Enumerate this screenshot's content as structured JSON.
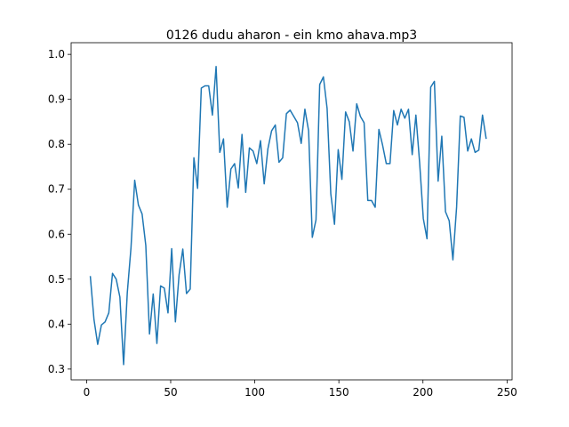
{
  "chart_data": {
    "type": "line",
    "title": "0126 dudu aharon - ein kmo ahava.mp3",
    "x": [
      2.2,
      4.4,
      6.6,
      8.8,
      11,
      13.2,
      15.4,
      17.6,
      19.8,
      22,
      24.2,
      26.4,
      28.6,
      30.8,
      33,
      35.2,
      37.4,
      39.6,
      41.8,
      44,
      46.2,
      48.4,
      50.6,
      52.8,
      55,
      57.2,
      59.4,
      61.6,
      63.8,
      66,
      68.2,
      70.4,
      72.6,
      74.8,
      77,
      79.2,
      81.4,
      83.6,
      85.8,
      88,
      90.2,
      92.4,
      94.6,
      96.8,
      99,
      101.2,
      103.4,
      105.6,
      107.8,
      110,
      112.2,
      114.4,
      116.6,
      118.8,
      121,
      123.2,
      125.4,
      127.6,
      129.8,
      132,
      134.2,
      136.4,
      138.6,
      140.8,
      143,
      145.2,
      147.4,
      149.6,
      151.8,
      154,
      156.2,
      158.4,
      160.6,
      162.8,
      165,
      167.2,
      169.4,
      171.6,
      173.8,
      176,
      178.2,
      180.4,
      182.6,
      184.8,
      187,
      189.2,
      191.4,
      193.6,
      195.8,
      198,
      200.2,
      202.4,
      204.6,
      206.8,
      209,
      211.2,
      213.4,
      215.6,
      217.8,
      220,
      222.2,
      224.4,
      226.6,
      228.8,
      231,
      233.2,
      235.4,
      237.6
    ],
    "series": [
      {
        "color": "#1f77b4",
        "values": [
          0.507,
          0.41,
          0.355,
          0.398,
          0.405,
          0.425,
          0.513,
          0.5,
          0.46,
          0.31,
          0.47,
          0.57,
          0.72,
          0.665,
          0.645,
          0.575,
          0.378,
          0.467,
          0.357,
          0.485,
          0.48,
          0.425,
          0.568,
          0.405,
          0.51,
          0.567,
          0.468,
          0.478,
          0.77,
          0.702,
          0.925,
          0.93,
          0.93,
          0.865,
          0.973,
          0.782,
          0.812,
          0.66,
          0.745,
          0.757,
          0.703,
          0.822,
          0.693,
          0.792,
          0.785,
          0.757,
          0.808,
          0.712,
          0.79,
          0.83,
          0.843,
          0.76,
          0.77,
          0.868,
          0.876,
          0.862,
          0.848,
          0.802,
          0.878,
          0.83,
          0.593,
          0.632,
          0.933,
          0.95,
          0.88,
          0.69,
          0.622,
          0.788,
          0.722,
          0.872,
          0.85,
          0.785,
          0.89,
          0.862,
          0.848,
          0.675,
          0.675,
          0.66,
          0.833,
          0.798,
          0.757,
          0.757,
          0.875,
          0.843,
          0.878,
          0.858,
          0.878,
          0.777,
          0.865,
          0.76,
          0.635,
          0.59,
          0.927,
          0.94,
          0.718,
          0.818,
          0.65,
          0.63,
          0.543,
          0.66,
          0.863,
          0.86,
          0.785,
          0.812,
          0.782,
          0.787,
          0.865,
          0.812
        ]
      }
    ],
    "xlim": [
      -9.2,
      253
    ],
    "ylim": [
      0.276,
      1.026
    ],
    "xticks": [
      0,
      50,
      100,
      150,
      200,
      250
    ],
    "yticks": [
      0.3,
      0.4,
      0.5,
      0.6,
      0.7,
      0.8,
      0.9,
      {
        "value": 1,
        "label": "1.0"
      }
    ]
  }
}
